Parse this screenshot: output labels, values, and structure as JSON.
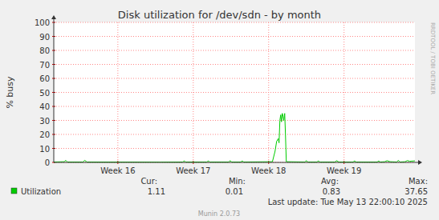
{
  "chart_data": {
    "type": "line",
    "title": "Disk utilization for /dev/sdn - by month",
    "ylabel": "% busy",
    "watermark": "RRDTOOL / TOBI OETIKER",
    "xlim": [
      15.65,
      20.44
    ],
    "xticks": [
      {
        "value": 16.5,
        "label": "Week 16"
      },
      {
        "value": 17.5,
        "label": "Week 17"
      },
      {
        "value": 18.5,
        "label": "Week 18"
      },
      {
        "value": 19.5,
        "label": "Week 19"
      }
    ],
    "ylim": [
      0,
      100
    ],
    "yticks": [
      0,
      10,
      20,
      30,
      40,
      50,
      60,
      70,
      80,
      90,
      100
    ],
    "grid": true,
    "x": [
      15.65,
      15.79,
      15.81,
      15.83,
      16.04,
      16.06,
      16.09,
      17.06,
      17.36,
      17.38,
      17.4,
      17.68,
      17.7,
      17.72,
      17.97,
      17.99,
      18.01,
      18.13,
      18.15,
      18.17,
      18.55,
      18.585,
      18.606,
      18.628,
      18.638,
      18.649,
      18.66,
      18.67,
      18.681,
      18.691,
      18.7,
      18.713,
      18.723,
      18.734,
      18.98,
      19.0,
      19.02,
      19.14,
      19.16,
      19.18,
      19.38,
      19.4,
      19.43,
      19.62,
      19.64,
      19.66,
      19.94,
      19.96,
      19.98,
      20.04,
      20.07,
      20.11,
      20.2,
      20.22,
      20.24,
      20.31,
      20.34,
      20.37,
      20.44
    ],
    "series": [
      {
        "name": "Utilization",
        "color": "#00cc00",
        "values": [
          0.3,
          0.5,
          1.5,
          0.3,
          0.3,
          1.5,
          0.3,
          0.2,
          0.3,
          1.0,
          0.3,
          0.3,
          1.0,
          0.3,
          0.3,
          1.2,
          0.3,
          0.3,
          1.0,
          0.3,
          0.5,
          8,
          15,
          17,
          14,
          30,
          34,
          29,
          35,
          33,
          30,
          35,
          20,
          0.5,
          0.3,
          1.2,
          0.3,
          0.3,
          1.0,
          0.3,
          0.3,
          1.2,
          0.3,
          0.3,
          1.0,
          0.3,
          0.3,
          1.0,
          0.3,
          0.5,
          1.2,
          0.5,
          0.3,
          1.5,
          0.3,
          0.5,
          1.3,
          0.8,
          1.1
        ]
      }
    ],
    "stat_labels": [
      "Cur:",
      "Min:",
      "Avg:",
      "Max:"
    ],
    "stats": [
      1.11,
      0.01,
      0.83,
      37.65
    ],
    "last_update": "Last update: Tue May 13 22:00:10 2025",
    "footer": "Munin 2.0.73"
  }
}
